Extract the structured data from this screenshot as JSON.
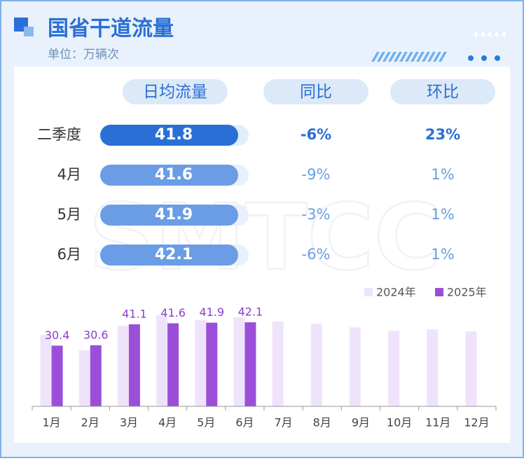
{
  "header": {
    "title": "国省干道流量",
    "subtitle": "单位：万辆次"
  },
  "watermark": "SMTCC",
  "table": {
    "columns": [
      "日均流量",
      "同比",
      "环比"
    ],
    "rows": [
      [
        "二季度",
        41.8,
        "-6%",
        "23%"
      ],
      [
        "4月",
        41.6,
        "-9%",
        "1%"
      ],
      [
        "5月",
        41.9,
        "-3%",
        "1%"
      ],
      [
        "6月",
        42.1,
        "-6%",
        "1%"
      ]
    ]
  },
  "chart_data": {
    "type": "bar",
    "categories": [
      "1月",
      "2月",
      "3月",
      "4月",
      "5月",
      "6月",
      "7月",
      "8月",
      "9月",
      "10月",
      "11月",
      "12月"
    ],
    "series": [
      {
        "name": "2024年",
        "color": "#efe3fb",
        "values": [
          35.8,
          28.1,
          40.4,
          45.6,
          43.2,
          44.6,
          42.5,
          41.4,
          39.6,
          37.9,
          38.6,
          37.5
        ]
      },
      {
        "name": "2025年",
        "color": "#9b4fd9",
        "values": [
          30.4,
          30.6,
          41.1,
          41.6,
          41.9,
          42.1,
          null,
          null,
          null,
          null,
          null,
          null
        ]
      }
    ],
    "ylim": [
      0,
      50
    ],
    "legend": "top-right"
  }
}
